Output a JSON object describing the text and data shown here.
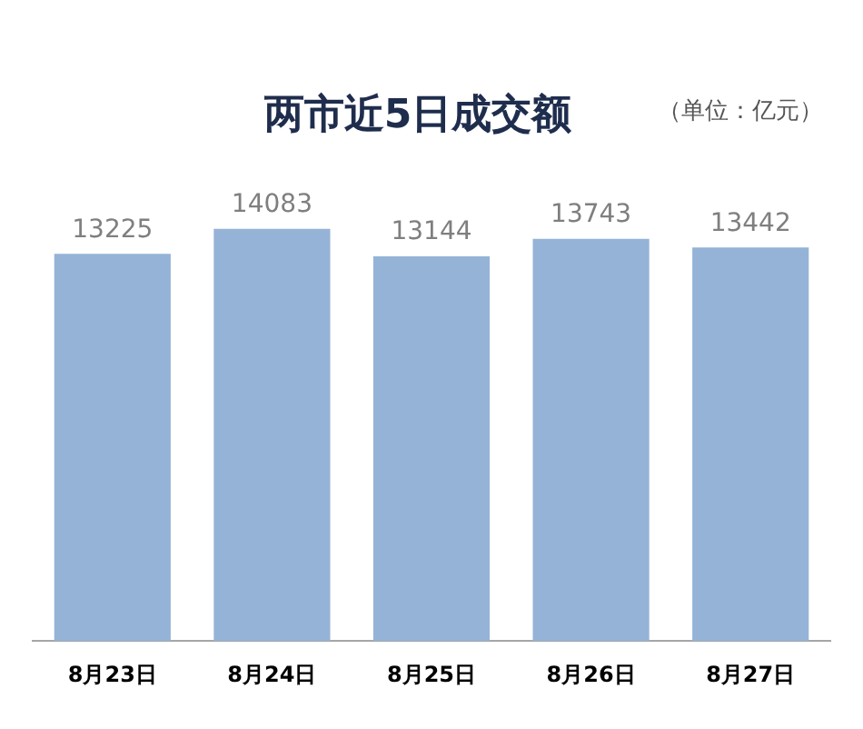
{
  "chart_data": {
    "type": "bar",
    "title": "两市近5日成交额",
    "annotations": [
      "（单位：亿元）"
    ],
    "categories": [
      "8月23日",
      "8月24日",
      "8月25日",
      "8月26日",
      "8月27日"
    ],
    "values": [
      13225,
      14083,
      13144,
      13743,
      13442
    ],
    "color": "#95b3d7",
    "data_labels": true,
    "grid": false,
    "legend": false
  }
}
